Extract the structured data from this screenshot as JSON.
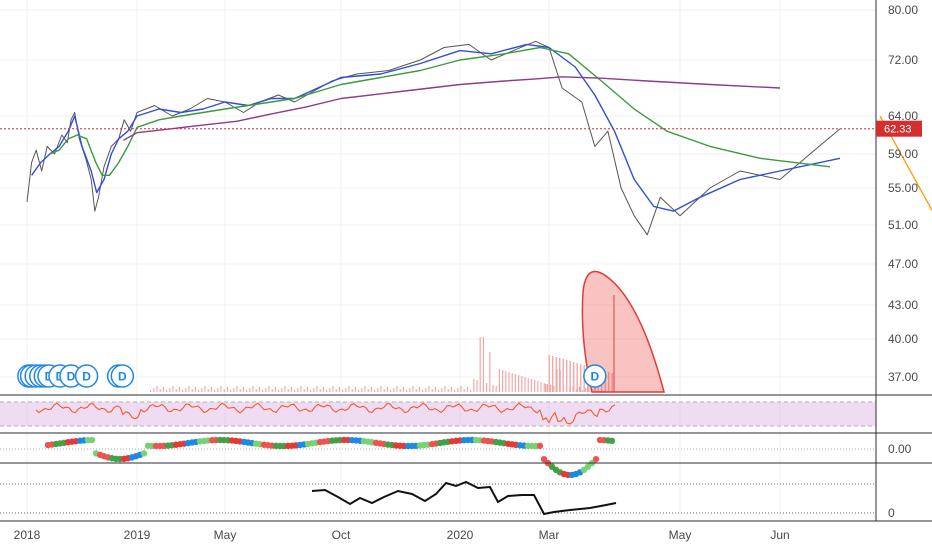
{
  "chart_data": {
    "type": "line",
    "price_axis": {
      "ticks": [
        {
          "v": 80,
          "label": "80.00"
        },
        {
          "v": 72,
          "label": "72.00"
        },
        {
          "v": 64,
          "label": "64.00"
        },
        {
          "v": 59,
          "label": "59.00"
        },
        {
          "v": 55,
          "label": "55.00"
        },
        {
          "v": 51,
          "label": "51.00"
        },
        {
          "v": 47,
          "label": "47.00"
        },
        {
          "v": 43,
          "label": "43.00"
        },
        {
          "v": 40,
          "label": "40.00"
        },
        {
          "v": 37,
          "label": "37.00"
        }
      ],
      "last_price": "62.33"
    },
    "time_axis": {
      "ticks": [
        {
          "t": 0,
          "label": "2018"
        },
        {
          "t": 12,
          "label": "2019"
        },
        {
          "t": 16,
          "label": "May"
        },
        {
          "t": 21,
          "label": "Oct"
        },
        {
          "t": 24,
          "label": "2020"
        },
        {
          "t": 26,
          "label": "Mar"
        },
        {
          "t": 28,
          "label": "May"
        },
        {
          "t": 29,
          "label": "Jun"
        }
      ]
    },
    "series": [
      {
        "color": "#555555",
        "points": [
          [
            0,
            53.5
          ],
          [
            0.5,
            58
          ],
          [
            1,
            59.5
          ],
          [
            1.6,
            57
          ],
          [
            2.2,
            60
          ],
          [
            3,
            59
          ],
          [
            3.8,
            61.5
          ],
          [
            4.4,
            60.5
          ],
          [
            4.8,
            63.5
          ],
          [
            5.2,
            64.5
          ],
          [
            5.7,
            61
          ],
          [
            6.4,
            58.5
          ],
          [
            7,
            56
          ],
          [
            7.4,
            52.5
          ],
          [
            7.8,
            54
          ],
          [
            8.4,
            57.5
          ],
          [
            9.2,
            60
          ],
          [
            10,
            61
          ],
          [
            10.6,
            63.5
          ],
          [
            11.3,
            62
          ],
          [
            12,
            64.5
          ],
          [
            12.8,
            65.5
          ],
          [
            13.6,
            64
          ],
          [
            14.4,
            65
          ],
          [
            15.2,
            66.5
          ],
          [
            16,
            66
          ],
          [
            16.8,
            64.5
          ],
          [
            17.5,
            66
          ],
          [
            18.3,
            67
          ],
          [
            19,
            66
          ],
          [
            19.8,
            67.5
          ],
          [
            20.6,
            69
          ],
          [
            21.4,
            70
          ],
          [
            22.2,
            70.5
          ],
          [
            23,
            72
          ],
          [
            23.6,
            74
          ],
          [
            24.2,
            74.5
          ],
          [
            24.7,
            72
          ],
          [
            25.2,
            73.5
          ],
          [
            25.7,
            75
          ],
          [
            26,
            74
          ],
          [
            26.2,
            68
          ],
          [
            26.5,
            66
          ],
          [
            26.7,
            60
          ],
          [
            26.9,
            62
          ],
          [
            27.1,
            55
          ],
          [
            27.3,
            52
          ],
          [
            27.5,
            50
          ],
          [
            27.7,
            54
          ],
          [
            28,
            52
          ],
          [
            28.3,
            55
          ],
          [
            28.6,
            57
          ],
          [
            29,
            56
          ],
          [
            29.3,
            59
          ],
          [
            29.6,
            62.3
          ]
        ]
      },
      {
        "color": "#2f4fd8",
        "points": [
          [
            0.5,
            56.5
          ],
          [
            1.5,
            58
          ],
          [
            2.5,
            59
          ],
          [
            3.5,
            60
          ],
          [
            4.5,
            62
          ],
          [
            5.2,
            64
          ],
          [
            6,
            60
          ],
          [
            7,
            57
          ],
          [
            7.6,
            54.5
          ],
          [
            8.4,
            56
          ],
          [
            9.2,
            59
          ],
          [
            10,
            61
          ],
          [
            11,
            62
          ],
          [
            12,
            64
          ],
          [
            13,
            65
          ],
          [
            14,
            64.5
          ],
          [
            15,
            65
          ],
          [
            16,
            66
          ],
          [
            17,
            65.5
          ],
          [
            18,
            66.5
          ],
          [
            19,
            66.5
          ],
          [
            20,
            68
          ],
          [
            21,
            69.5
          ],
          [
            22,
            70
          ],
          [
            23,
            71.5
          ],
          [
            24,
            73.5
          ],
          [
            24.7,
            73
          ],
          [
            25.5,
            74.5
          ],
          [
            26,
            74
          ],
          [
            26.4,
            71
          ],
          [
            26.7,
            67
          ],
          [
            27,
            62
          ],
          [
            27.3,
            56
          ],
          [
            27.6,
            53
          ],
          [
            27.9,
            52.5
          ],
          [
            28.2,
            54
          ],
          [
            28.6,
            56
          ],
          [
            29,
            57
          ],
          [
            29.6,
            58.5
          ]
        ]
      },
      {
        "color": "#3d9a3d",
        "points": [
          [
            2.5,
            59
          ],
          [
            3.5,
            59.5
          ],
          [
            4.5,
            61
          ],
          [
            5.5,
            61.5
          ],
          [
            6.5,
            61
          ],
          [
            7.5,
            58
          ],
          [
            8.2,
            56.5
          ],
          [
            9,
            56.5
          ],
          [
            10,
            58
          ],
          [
            11,
            60
          ],
          [
            12,
            62.5
          ],
          [
            13,
            63.5
          ],
          [
            14,
            64
          ],
          [
            15,
            64.5
          ],
          [
            16,
            65
          ],
          [
            17,
            65.5
          ],
          [
            18,
            66
          ],
          [
            19,
            66.5
          ],
          [
            20,
            67.5
          ],
          [
            21,
            68.5
          ],
          [
            22,
            69.5
          ],
          [
            23,
            70.5
          ],
          [
            24,
            72
          ],
          [
            25,
            73
          ],
          [
            25.8,
            74
          ],
          [
            26.3,
            73
          ],
          [
            26.8,
            69
          ],
          [
            27.3,
            65
          ],
          [
            27.8,
            62
          ],
          [
            28.3,
            60
          ],
          [
            28.8,
            58.5
          ],
          [
            29.5,
            57.5
          ]
        ]
      },
      {
        "color": "#8e3a8e",
        "points": [
          [
            10.5,
            60.8
          ],
          [
            12,
            61.8
          ],
          [
            13.5,
            62.3
          ],
          [
            15,
            62.8
          ],
          [
            16.5,
            63.3
          ],
          [
            18,
            64.3
          ],
          [
            19.5,
            65.3
          ],
          [
            21,
            66.5
          ],
          [
            22.5,
            67.5
          ],
          [
            24,
            68.5
          ],
          [
            25,
            69
          ],
          [
            25.7,
            69.3
          ],
          [
            26.2,
            69.6
          ],
          [
            26.8,
            69.4
          ],
          [
            27.5,
            69
          ],
          [
            28.3,
            68.5
          ],
          [
            29,
            68
          ]
        ]
      }
    ]
  },
  "dividend_marker": "D",
  "dividends": [
    0.2,
    0.5,
    1.0,
    1.5,
    2.0,
    2.4,
    3.6,
    4.8,
    6.5,
    10.0,
    10.4,
    26.7
  ],
  "hline_price": 62.33,
  "arrow": {
    "from": [
      30,
      64
    ],
    "to": [
      31.3,
      39
    ]
  },
  "ellipse": {
    "cx": 28.9,
    "cy": 38.5,
    "note": "red highlight"
  },
  "indicator_axis": {
    "zero_label": "0.00",
    "bottom_label": "0"
  },
  "colors": {
    "hline": "#d32f2f",
    "arrow": "#ff9800",
    "ellipse": "#ef5350",
    "rsi": "#f4511e",
    "rsi_band": "#e1bee7",
    "ma": "#2f4fd8",
    "bg": "#ffffff"
  }
}
